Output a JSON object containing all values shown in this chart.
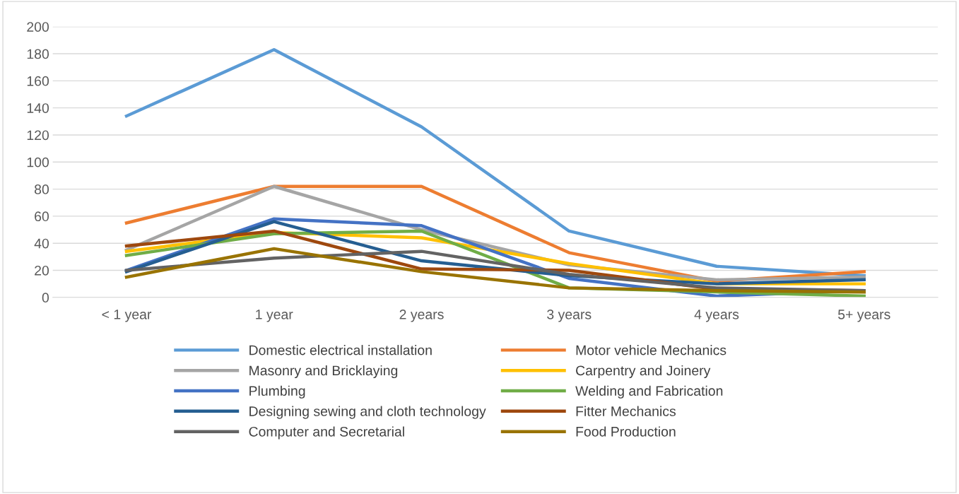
{
  "chart_data": {
    "type": "line",
    "categories": [
      "< 1 year",
      "1 year",
      "2 years",
      "3 years",
      "4 years",
      "5+ years"
    ],
    "series": [
      {
        "name": "Domestic electrical installation",
        "color": "#5b9bd5",
        "values": [
          134,
          183,
          126,
          49,
          23,
          16
        ]
      },
      {
        "name": "Motor vehicle Mechanics",
        "color": "#ed7d31",
        "values": [
          55,
          82,
          82,
          33,
          12,
          19
        ]
      },
      {
        "name": "Masonry and Bricklaying",
        "color": "#a5a5a5",
        "values": [
          35,
          82,
          50,
          24,
          13,
          15
        ]
      },
      {
        "name": "Carpentry and Joinery",
        "color": "#ffc000",
        "values": [
          34,
          48,
          44,
          25,
          10,
          10
        ]
      },
      {
        "name": "Plumbing",
        "color": "#4472c4",
        "values": [
          20,
          58,
          53,
          14,
          1,
          5
        ]
      },
      {
        "name": "Welding and Fabrication",
        "color": "#70ad47",
        "values": [
          31,
          47,
          49,
          7,
          4,
          1
        ]
      },
      {
        "name": "Designing sewing and cloth technology",
        "color": "#255e91",
        "values": [
          19,
          56,
          27,
          16,
          10,
          13
        ]
      },
      {
        "name": "Fitter Mechanics",
        "color": "#9e480e",
        "values": [
          38,
          49,
          21,
          20,
          6,
          5
        ]
      },
      {
        "name": "Computer and Secretarial",
        "color": "#636363",
        "values": [
          20,
          29,
          34,
          17,
          7,
          5
        ]
      },
      {
        "name": "Food Production",
        "color": "#997300",
        "values": [
          15,
          36,
          19,
          7,
          5,
          4
        ]
      }
    ],
    "ylim": [
      0,
      200
    ],
    "yticks": [
      0,
      20,
      40,
      60,
      80,
      100,
      120,
      140,
      160,
      180,
      200
    ],
    "grid": "y",
    "legend": "bottom",
    "marker": "none",
    "line_style": "solid"
  }
}
